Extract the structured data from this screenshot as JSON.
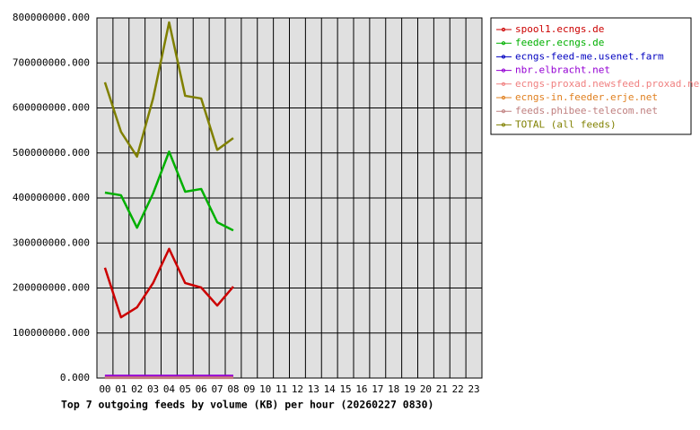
{
  "chart_data": {
    "type": "line",
    "title": "Top 7 outgoing feeds by volume (KB) per hour (20260227 0830)",
    "categories": [
      "00",
      "01",
      "02",
      "03",
      "04",
      "05",
      "06",
      "07",
      "08",
      "09",
      "10",
      "11",
      "12",
      "13",
      "14",
      "15",
      "16",
      "17",
      "18",
      "19",
      "20",
      "21",
      "22",
      "23"
    ],
    "series": [
      {
        "name": "spool1.ecngs.de",
        "color": "#cc0000",
        "values": [
          245000000,
          135000000,
          157000000,
          211000000,
          287000000,
          211000000,
          201000000,
          161000000,
          203000000,
          null,
          null,
          null,
          null,
          null,
          null,
          null,
          null,
          null,
          null,
          null,
          null,
          null,
          null,
          null
        ]
      },
      {
        "name": "feeder.ecngs.de",
        "color": "#00b000",
        "values": [
          412000000,
          406000000,
          334000000,
          410000000,
          503000000,
          414000000,
          420000000,
          346000000,
          328000000,
          null,
          null,
          null,
          null,
          null,
          null,
          null,
          null,
          null,
          null,
          null,
          null,
          null,
          null,
          null
        ]
      },
      {
        "name": "ecngs-feed-me.usenet.farm",
        "color": "#0000c0",
        "values": [
          4000000,
          4000000,
          4000000,
          4000000,
          4000000,
          4000000,
          4000000,
          4000000,
          4000000,
          null,
          null,
          null,
          null,
          null,
          null,
          null,
          null,
          null,
          null,
          null,
          null,
          null,
          null,
          null
        ]
      },
      {
        "name": "nbr.elbracht.net",
        "color": "#9400d3",
        "values": [
          5000000,
          5000000,
          5000000,
          5000000,
          5000000,
          5000000,
          5000000,
          5000000,
          5000000,
          null,
          null,
          null,
          null,
          null,
          null,
          null,
          null,
          null,
          null,
          null,
          null,
          null,
          null,
          null
        ]
      },
      {
        "name": "ecngs-proxad.newsfeed.proxad.net",
        "color": "#f08080",
        "values": [
          1000000,
          1000000,
          1000000,
          1000000,
          1000000,
          1000000,
          1000000,
          1000000,
          1000000,
          null,
          null,
          null,
          null,
          null,
          null,
          null,
          null,
          null,
          null,
          null,
          null,
          null,
          null,
          null
        ]
      },
      {
        "name": "ecngs-in.feeder.erje.net",
        "color": "#e08020",
        "values": [
          500000,
          500000,
          500000,
          500000,
          500000,
          500000,
          500000,
          500000,
          500000,
          null,
          null,
          null,
          null,
          null,
          null,
          null,
          null,
          null,
          null,
          null,
          null,
          null,
          null,
          null
        ]
      },
      {
        "name": "feeds.phibee-telecom.net",
        "color": "#c08080",
        "values": [
          200000,
          200000,
          200000,
          200000,
          200000,
          200000,
          200000,
          200000,
          200000,
          null,
          null,
          null,
          null,
          null,
          null,
          null,
          null,
          null,
          null,
          null,
          null,
          null,
          null,
          null
        ]
      },
      {
        "name": "TOTAL (all feeds)",
        "color": "#808000",
        "values": [
          657000000,
          547000000,
          492000000,
          621000000,
          790000000,
          627000000,
          621000000,
          507000000,
          533000000,
          null,
          null,
          null,
          null,
          null,
          null,
          null,
          null,
          null,
          null,
          null,
          null,
          null,
          null,
          null
        ]
      }
    ],
    "ylim": [
      0,
      800000000
    ],
    "yticks": [
      {
        "value": 0,
        "label": "0.000"
      },
      {
        "value": 100000000,
        "label": "100000000.000"
      },
      {
        "value": 200000000,
        "label": "200000000.000"
      },
      {
        "value": 300000000,
        "label": "300000000.000"
      },
      {
        "value": 400000000,
        "label": "400000000.000"
      },
      {
        "value": 500000000,
        "label": "500000000.000"
      },
      {
        "value": 600000000,
        "label": "600000000.000"
      },
      {
        "value": 700000000,
        "label": "700000000.000"
      },
      {
        "value": 800000000,
        "label": "800000000.000"
      }
    ],
    "grid": true
  }
}
